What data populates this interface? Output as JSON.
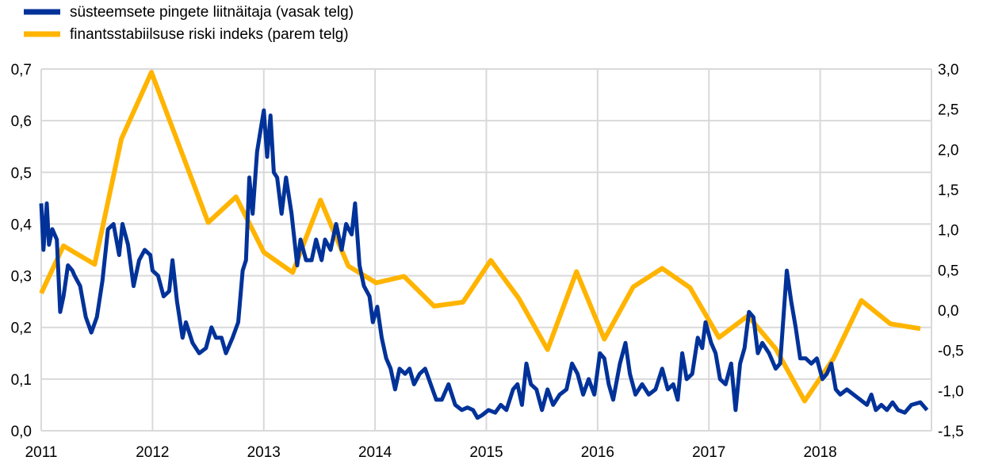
{
  "chart_data": {
    "type": "line",
    "title": "",
    "legend_position": "top-left",
    "grid": true,
    "x_range": [
      2011,
      2019
    ],
    "x_ticks": [
      "2011",
      "2012",
      "2013",
      "2014",
      "2015",
      "2016",
      "2017",
      "2018"
    ],
    "y_left": {
      "range": [
        0,
        0.7
      ],
      "ticks": [
        "0,0",
        "0,1",
        "0,2",
        "0,3",
        "0,4",
        "0,5",
        "0,6",
        "0,7"
      ]
    },
    "y_right": {
      "range": [
        -1.5,
        3.0
      ],
      "ticks": [
        "-1,5",
        "-1,0",
        "-0,5",
        "0,0",
        "0,5",
        "1,0",
        "1,5",
        "2,0",
        "2,5",
        "3,0"
      ]
    },
    "series": [
      {
        "name": "süsteemsete pingete liitnäitaja (vasak telg)",
        "axis": "left",
        "color": "#003299",
        "points": [
          [
            2011.0,
            0.44
          ],
          [
            2011.02,
            0.35
          ],
          [
            2011.05,
            0.44
          ],
          [
            2011.07,
            0.36
          ],
          [
            2011.1,
            0.39
          ],
          [
            2011.14,
            0.37
          ],
          [
            2011.17,
            0.23
          ],
          [
            2011.2,
            0.26
          ],
          [
            2011.24,
            0.32
          ],
          [
            2011.28,
            0.31
          ],
          [
            2011.3,
            0.3
          ],
          [
            2011.35,
            0.28
          ],
          [
            2011.4,
            0.22
          ],
          [
            2011.45,
            0.19
          ],
          [
            2011.5,
            0.22
          ],
          [
            2011.55,
            0.29
          ],
          [
            2011.6,
            0.39
          ],
          [
            2011.65,
            0.4
          ],
          [
            2011.7,
            0.34
          ],
          [
            2011.73,
            0.4
          ],
          [
            2011.78,
            0.36
          ],
          [
            2011.83,
            0.28
          ],
          [
            2011.88,
            0.33
          ],
          [
            2011.93,
            0.35
          ],
          [
            2011.98,
            0.34
          ],
          [
            2012.0,
            0.31
          ],
          [
            2012.05,
            0.3
          ],
          [
            2012.1,
            0.26
          ],
          [
            2012.15,
            0.27
          ],
          [
            2012.18,
            0.33
          ],
          [
            2012.22,
            0.25
          ],
          [
            2012.27,
            0.18
          ],
          [
            2012.3,
            0.21
          ],
          [
            2012.36,
            0.17
          ],
          [
            2012.42,
            0.15
          ],
          [
            2012.48,
            0.16
          ],
          [
            2012.53,
            0.2
          ],
          [
            2012.57,
            0.18
          ],
          [
            2012.62,
            0.18
          ],
          [
            2012.66,
            0.15
          ],
          [
            2012.72,
            0.18
          ],
          [
            2012.77,
            0.21
          ],
          [
            2012.81,
            0.31
          ],
          [
            2012.84,
            0.33
          ],
          [
            2012.87,
            0.49
          ],
          [
            2012.9,
            0.42
          ],
          [
            2012.94,
            0.54
          ],
          [
            2012.97,
            0.58
          ],
          [
            2013.0,
            0.62
          ],
          [
            2013.03,
            0.53
          ],
          [
            2013.06,
            0.61
          ],
          [
            2013.09,
            0.5
          ],
          [
            2013.12,
            0.49
          ],
          [
            2013.16,
            0.42
          ],
          [
            2013.2,
            0.49
          ],
          [
            2013.25,
            0.42
          ],
          [
            2013.3,
            0.32
          ],
          [
            2013.33,
            0.37
          ],
          [
            2013.38,
            0.33
          ],
          [
            2013.43,
            0.33
          ],
          [
            2013.47,
            0.37
          ],
          [
            2013.52,
            0.33
          ],
          [
            2013.55,
            0.37
          ],
          [
            2013.6,
            0.35
          ],
          [
            2013.65,
            0.4
          ],
          [
            2013.7,
            0.35
          ],
          [
            2013.74,
            0.4
          ],
          [
            2013.79,
            0.38
          ],
          [
            2013.82,
            0.44
          ],
          [
            2013.86,
            0.32
          ],
          [
            2013.9,
            0.28
          ],
          [
            2013.95,
            0.26
          ],
          [
            2013.98,
            0.21
          ],
          [
            2014.02,
            0.24
          ],
          [
            2014.06,
            0.18
          ],
          [
            2014.1,
            0.14
          ],
          [
            2014.14,
            0.12
          ],
          [
            2014.18,
            0.08
          ],
          [
            2014.22,
            0.12
          ],
          [
            2014.27,
            0.11
          ],
          [
            2014.31,
            0.12
          ],
          [
            2014.35,
            0.09
          ],
          [
            2014.4,
            0.11
          ],
          [
            2014.45,
            0.12
          ],
          [
            2014.5,
            0.09
          ],
          [
            2014.55,
            0.06
          ],
          [
            2014.6,
            0.06
          ],
          [
            2014.66,
            0.09
          ],
          [
            2014.72,
            0.05
          ],
          [
            2014.78,
            0.04
          ],
          [
            2014.83,
            0.045
          ],
          [
            2014.88,
            0.04
          ],
          [
            2014.92,
            0.025
          ],
          [
            2014.96,
            0.03
          ],
          [
            2015.02,
            0.04
          ],
          [
            2015.08,
            0.035
          ],
          [
            2015.13,
            0.05
          ],
          [
            2015.18,
            0.04
          ],
          [
            2015.24,
            0.08
          ],
          [
            2015.28,
            0.09
          ],
          [
            2015.32,
            0.05
          ],
          [
            2015.36,
            0.13
          ],
          [
            2015.4,
            0.09
          ],
          [
            2015.45,
            0.08
          ],
          [
            2015.5,
            0.04
          ],
          [
            2015.55,
            0.08
          ],
          [
            2015.6,
            0.05
          ],
          [
            2015.66,
            0.07
          ],
          [
            2015.72,
            0.08
          ],
          [
            2015.77,
            0.13
          ],
          [
            2015.82,
            0.11
          ],
          [
            2015.87,
            0.07
          ],
          [
            2015.92,
            0.1
          ],
          [
            2015.97,
            0.07
          ],
          [
            2016.02,
            0.15
          ],
          [
            2016.06,
            0.14
          ],
          [
            2016.1,
            0.09
          ],
          [
            2016.14,
            0.06
          ],
          [
            2016.2,
            0.13
          ],
          [
            2016.25,
            0.17
          ],
          [
            2016.29,
            0.11
          ],
          [
            2016.34,
            0.07
          ],
          [
            2016.4,
            0.09
          ],
          [
            2016.46,
            0.07
          ],
          [
            2016.52,
            0.08
          ],
          [
            2016.58,
            0.12
          ],
          [
            2016.63,
            0.08
          ],
          [
            2016.68,
            0.09
          ],
          [
            2016.72,
            0.06
          ],
          [
            2016.76,
            0.15
          ],
          [
            2016.8,
            0.1
          ],
          [
            2016.85,
            0.11
          ],
          [
            2016.9,
            0.18
          ],
          [
            2016.94,
            0.16
          ],
          [
            2016.97,
            0.21
          ],
          [
            2017.02,
            0.17
          ],
          [
            2017.06,
            0.15
          ],
          [
            2017.1,
            0.1
          ],
          [
            2017.15,
            0.09
          ],
          [
            2017.2,
            0.13
          ],
          [
            2017.24,
            0.04
          ],
          [
            2017.28,
            0.13
          ],
          [
            2017.32,
            0.16
          ],
          [
            2017.36,
            0.23
          ],
          [
            2017.4,
            0.22
          ],
          [
            2017.44,
            0.15
          ],
          [
            2017.48,
            0.17
          ],
          [
            2017.54,
            0.15
          ],
          [
            2017.6,
            0.12
          ],
          [
            2017.64,
            0.13
          ],
          [
            2017.7,
            0.31
          ],
          [
            2017.74,
            0.25
          ],
          [
            2017.78,
            0.2
          ],
          [
            2017.82,
            0.14
          ],
          [
            2017.87,
            0.14
          ],
          [
            2017.92,
            0.13
          ],
          [
            2017.97,
            0.14
          ],
          [
            2018.02,
            0.1
          ],
          [
            2018.06,
            0.11
          ],
          [
            2018.1,
            0.13
          ],
          [
            2018.14,
            0.08
          ],
          [
            2018.18,
            0.07
          ],
          [
            2018.24,
            0.08
          ],
          [
            2018.3,
            0.07
          ],
          [
            2018.36,
            0.06
          ],
          [
            2018.42,
            0.05
          ],
          [
            2018.46,
            0.07
          ],
          [
            2018.5,
            0.04
          ],
          [
            2018.55,
            0.05
          ],
          [
            2018.6,
            0.04
          ],
          [
            2018.65,
            0.055
          ],
          [
            2018.7,
            0.04
          ],
          [
            2018.76,
            0.035
          ],
          [
            2018.82,
            0.05
          ],
          [
            2018.9,
            0.055
          ],
          [
            2018.96,
            0.04
          ]
        ]
      },
      {
        "name": "finantsstabiilsuse riski indeks (parem telg)",
        "axis": "right",
        "color": "#FFB400",
        "points": [
          [
            2011.0,
            0.21
          ],
          [
            2011.2,
            0.8
          ],
          [
            2011.48,
            0.57
          ],
          [
            2011.72,
            2.13
          ],
          [
            2011.99,
            2.96
          ],
          [
            2012.5,
            1.09
          ],
          [
            2012.75,
            1.41
          ],
          [
            2013.0,
            0.72
          ],
          [
            2013.26,
            0.47
          ],
          [
            2013.51,
            1.37
          ],
          [
            2013.76,
            0.55
          ],
          [
            2014.01,
            0.34
          ],
          [
            2014.26,
            0.42
          ],
          [
            2014.53,
            0.05
          ],
          [
            2014.79,
            0.1
          ],
          [
            2015.04,
            0.62
          ],
          [
            2015.29,
            0.15
          ],
          [
            2015.55,
            -0.49
          ],
          [
            2015.81,
            0.48
          ],
          [
            2016.06,
            -0.36
          ],
          [
            2016.32,
            0.29
          ],
          [
            2016.58,
            0.52
          ],
          [
            2016.83,
            0.28
          ],
          [
            2017.09,
            -0.34
          ],
          [
            2017.35,
            -0.07
          ],
          [
            2017.6,
            -0.48
          ],
          [
            2017.86,
            -1.13
          ],
          [
            2018.12,
            -0.6
          ],
          [
            2018.37,
            0.12
          ],
          [
            2018.63,
            -0.17
          ],
          [
            2018.9,
            -0.23
          ]
        ]
      }
    ]
  }
}
